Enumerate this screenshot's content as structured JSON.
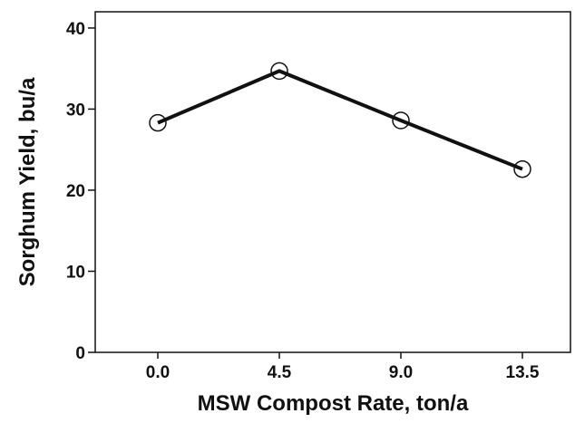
{
  "chart_data": {
    "type": "line",
    "title": "",
    "xlabel": "MSW Compost Rate, ton/a",
    "ylabel": "Sorghum Yield, bu/a",
    "categories": [
      "0.0",
      "4.5",
      "9.0",
      "13.5"
    ],
    "values": [
      28.3,
      34.7,
      28.6,
      22.6
    ],
    "ylim": [
      0,
      42
    ],
    "yticks": [
      "0",
      "10",
      "20",
      "30",
      "40"
    ],
    "grid": false,
    "legend": "none",
    "line_color": "#111111",
    "marker": "open-circle"
  }
}
